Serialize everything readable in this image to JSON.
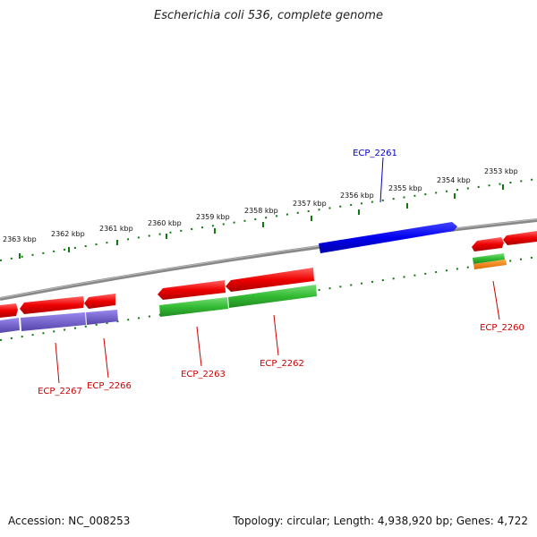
{
  "title": "Escherichia coli 536, complete genome",
  "footer": {
    "accession": "Accession: NC_008253",
    "summary": "Topology: circular; Length: 4,938,920 bp; Genes: 4,722"
  },
  "scale_labels": [
    "2363 kbp",
    "2362 kbp",
    "2361 kbp",
    "2360 kbp",
    "2359 kbp",
    "2358 kbp",
    "2357 kbp",
    "2356 kbp",
    "2355 kbp",
    "2354 kbp",
    "2353 kbp"
  ],
  "gene_labels": [
    {
      "text": "ECP_2261",
      "color": "#0000cc"
    },
    {
      "text": "ECP_2260",
      "color": "#cc0000"
    },
    {
      "text": "ECP_2262",
      "color": "#cc0000"
    },
    {
      "text": "ECP_2263",
      "color": "#cc0000"
    },
    {
      "text": "ECP_2266",
      "color": "#cc0000"
    },
    {
      "text": "ECP_2267",
      "color": "#cc0000"
    }
  ],
  "colors": {
    "highlight_gene": "#0000ee",
    "gene": "#ee1111",
    "cds": "#33bb33",
    "rna": "#7766cc",
    "misc": "#ff8800",
    "backbone": "#888888",
    "ruler": "#117711"
  }
}
